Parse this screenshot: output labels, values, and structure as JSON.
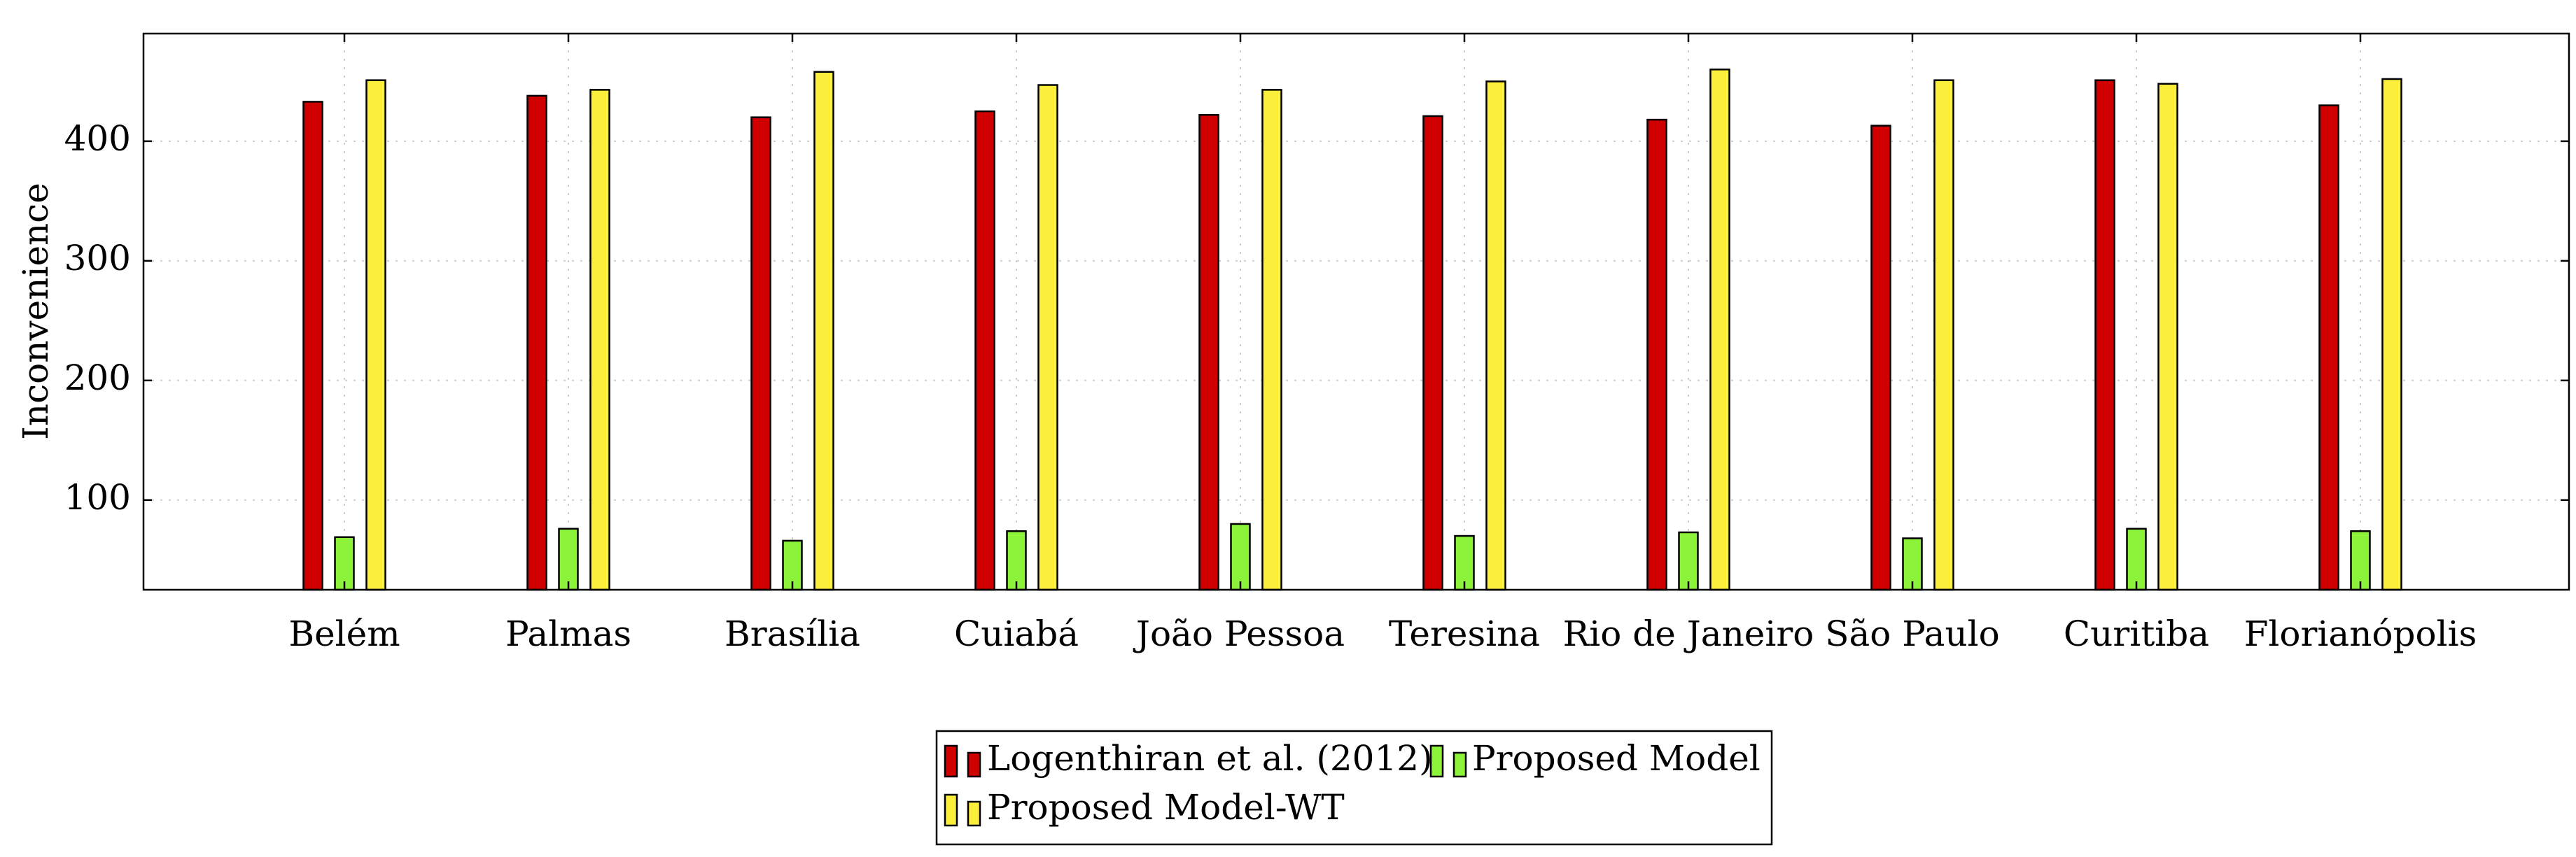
{
  "chart_data": {
    "type": "bar",
    "title": "",
    "xlabel": "",
    "ylabel": "Inconvenience",
    "ylim": [
      25,
      490
    ],
    "yticks": [
      100,
      200,
      300,
      400
    ],
    "grid": true,
    "legend_position": "bottom-center",
    "categories": [
      "Belém",
      "Palmas",
      "Brasília",
      "Cuiabá",
      "João Pessoa",
      "Teresina",
      "Rio de Janeiro",
      "São Paulo",
      "Curitiba",
      "Florianópolis"
    ],
    "series": [
      {
        "name": "Logenthiran et al. (2012)",
        "color": "#d10000",
        "values": [
          433,
          438,
          420,
          425,
          422,
          421,
          418,
          413,
          451,
          430
        ]
      },
      {
        "name": "Proposed Model",
        "color": "#8cf23a",
        "values": [
          69,
          76,
          66,
          74,
          80,
          70,
          73,
          68,
          76,
          74
        ]
      },
      {
        "name": "Proposed Model-WT",
        "color": "#fbef3c",
        "values": [
          451,
          443,
          458,
          447,
          443,
          450,
          460,
          451,
          448,
          452
        ]
      }
    ]
  }
}
